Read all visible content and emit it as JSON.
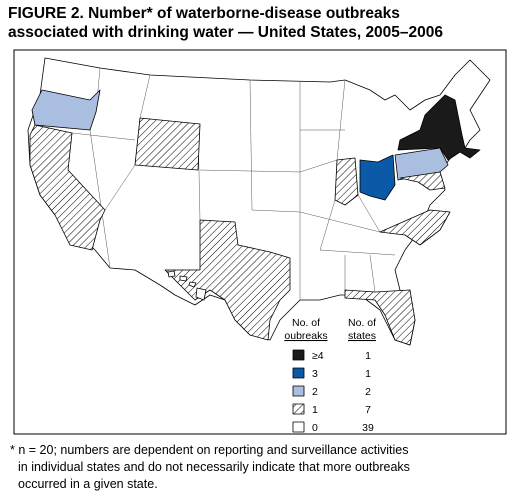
{
  "title": [
    "FIGURE 2. Number* of waterborne-disease outbreaks",
    "associated with drinking water — United States, 2005–2006"
  ],
  "legend": {
    "outbreaks_header": [
      "No. of",
      "oubreaks"
    ],
    "states_header": [
      "No. of",
      "states"
    ],
    "rows": [
      {
        "label": "≥4",
        "states": 1
      },
      {
        "label": "3",
        "states": 1
      },
      {
        "label": "2",
        "states": 2
      },
      {
        "label": "1",
        "states": 7
      },
      {
        "label": "0",
        "states": 39
      }
    ]
  },
  "footnote": [
    "* n = 20; numbers are dependent on reporting and surveillance activities",
    "in individual states and do not necessarily indicate that more outbreaks",
    "occurred in a given state."
  ]
}
